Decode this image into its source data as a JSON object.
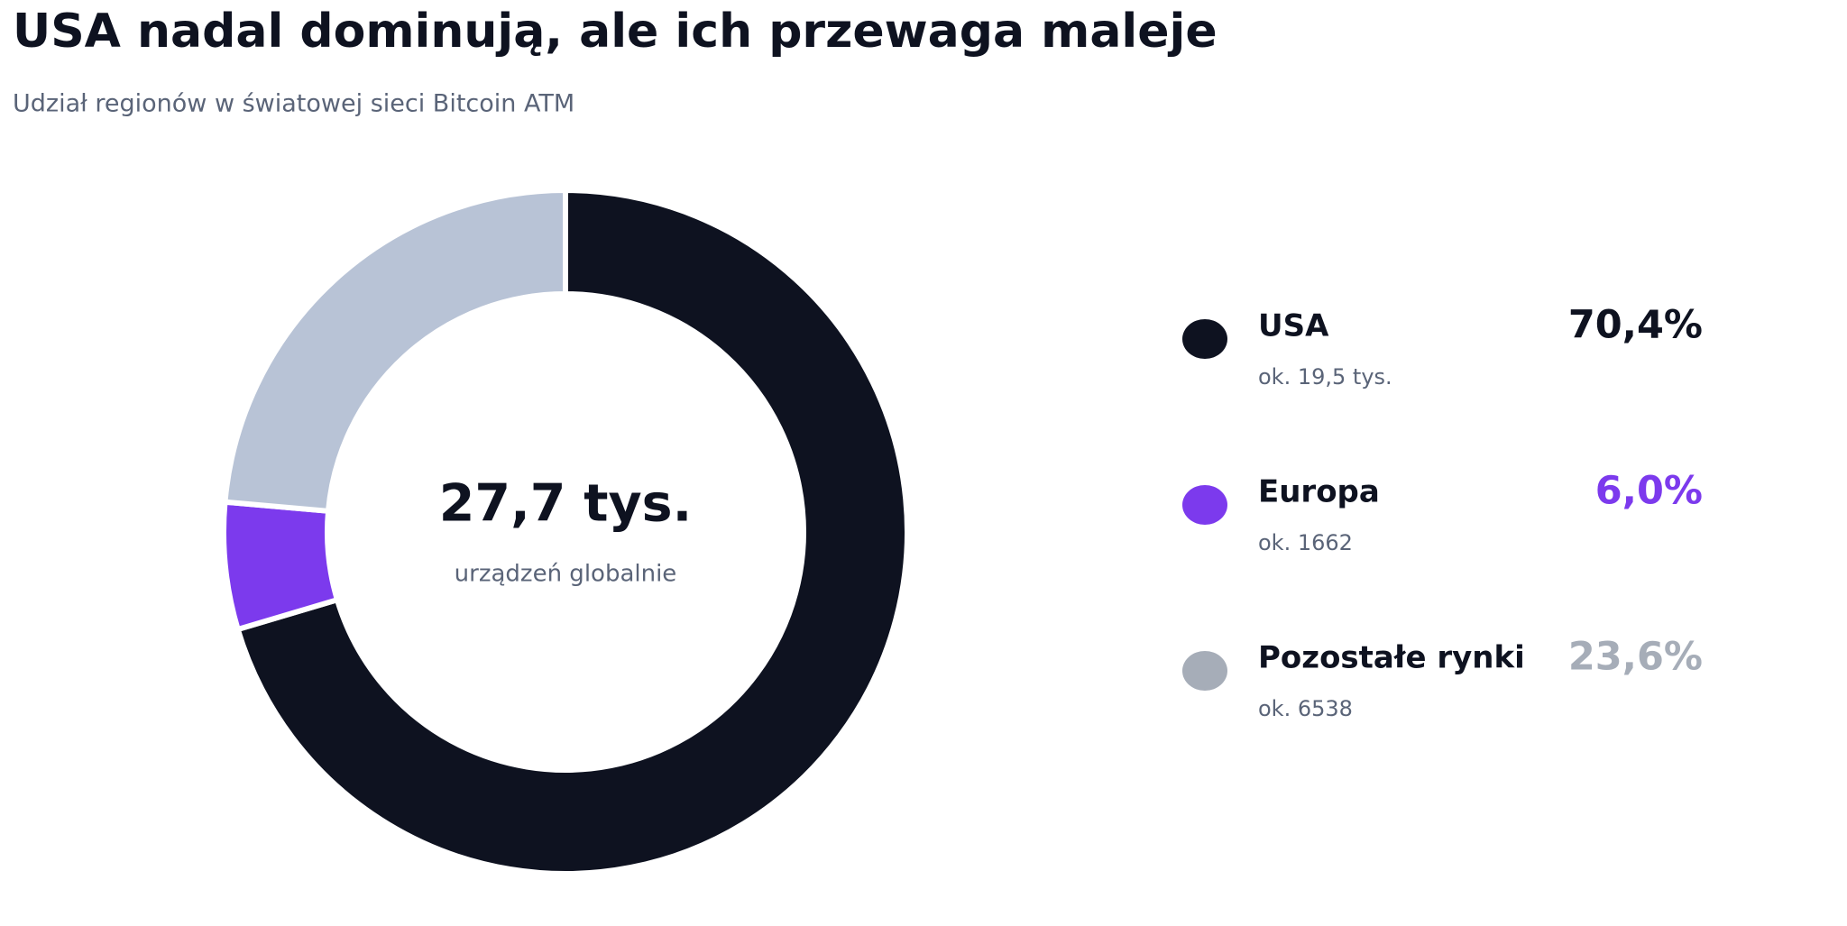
{
  "chart_data": {
    "type": "pie",
    "title": "USA nadal dominują, ale ich przewaga maleje",
    "subtitle": "Udział regionów w światowej sieci Bitcoin ATM",
    "center_value": "27,7 tys.",
    "center_label": "urządzeń globalnie",
    "categories": [
      "USA",
      "Europa",
      "Pozostałe rynki"
    ],
    "values": [
      70.4,
      6.0,
      23.6
    ],
    "value_labels": [
      "70,4%",
      "6,0%",
      "23,6%"
    ],
    "sublabels": [
      "ok. 19,5 tys.",
      "ok. 1662",
      "ok. 6538"
    ],
    "colors": [
      "#0e1220",
      "#7c3aed",
      "#b8c3d6"
    ],
    "label_colors": [
      "#0e1220",
      "#7c3aed",
      "#a6adb8"
    ]
  }
}
